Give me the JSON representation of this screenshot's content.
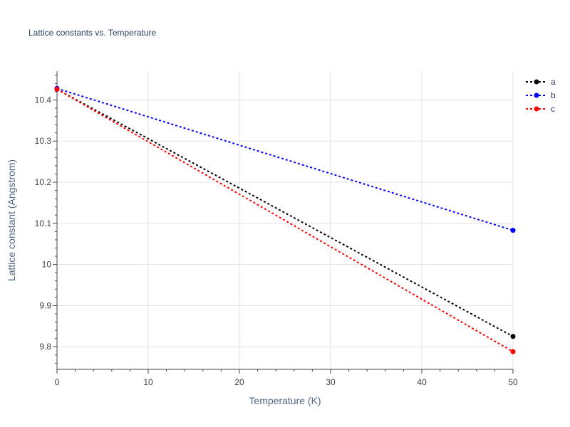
{
  "chart_data": {
    "type": "line",
    "title": "Lattice constants vs. Temperature",
    "xlabel": "Temperature (K)",
    "ylabel": "Lattice constant (Angstrom)",
    "xlim": [
      0,
      50
    ],
    "ylim": [
      9.745,
      10.47
    ],
    "xticks": [
      0,
      10,
      20,
      30,
      40,
      50
    ],
    "xtick_labels": [
      "0",
      "10",
      "20",
      "30",
      "40",
      "50"
    ],
    "yticks": [
      9.8,
      9.9,
      10.0,
      10.1,
      10.2,
      10.3,
      10.4
    ],
    "ytick_labels": [
      "9.8",
      "9.9",
      "10",
      "10.1",
      "10.2",
      "10.3",
      "10.4"
    ],
    "grid": true,
    "legend_position": "top-right",
    "series": [
      {
        "name": "a",
        "color": "#000000",
        "x": [
          0,
          50
        ],
        "y": [
          10.426,
          9.825
        ]
      },
      {
        "name": "b",
        "color": "#0000ff",
        "x": [
          0,
          50
        ],
        "y": [
          10.428,
          10.083
        ]
      },
      {
        "name": "c",
        "color": "#ff0000",
        "x": [
          0,
          50
        ],
        "y": [
          10.426,
          9.788
        ]
      }
    ]
  }
}
